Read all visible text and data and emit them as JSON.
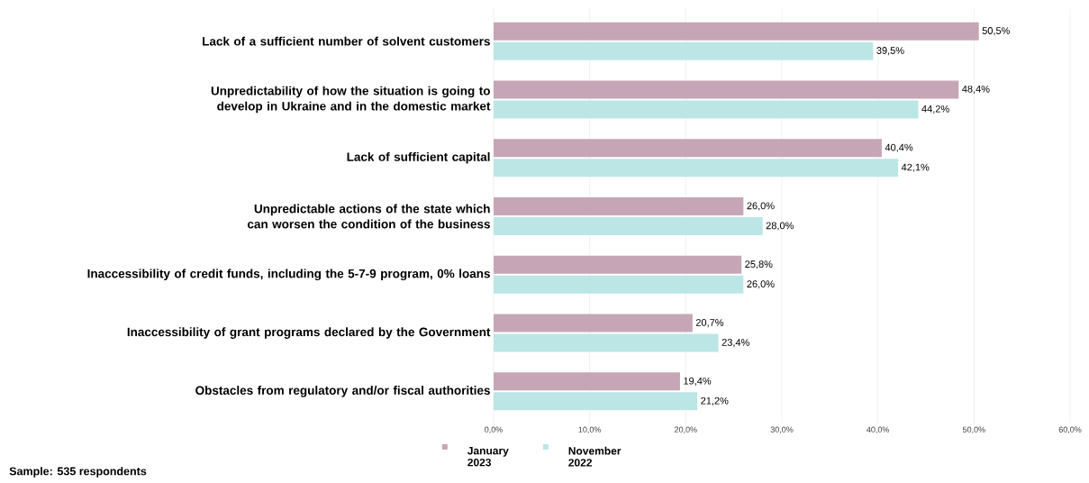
{
  "chart_data": {
    "type": "bar",
    "orientation": "horizontal",
    "categories": [
      "Lack of a sufficient number of solvent customers",
      "Unpredictability of how the situation is going to develop in Ukraine and in the domestic market",
      "Lack of sufficient capital",
      "Unpredictable actions of the state which can worsen the condition of the business",
      "Inaccessibility of credit funds, including the 5-7-9 program, 0% loans",
      "Inaccessibility of grant programs declared by the Government",
      "Obstacles from regulatory and/or fiscal authorities"
    ],
    "series": [
      {
        "name": "January 2023",
        "color": "#c6a6b6",
        "values": [
          50.5,
          48.4,
          40.4,
          26.0,
          25.8,
          20.7,
          19.4
        ],
        "value_labels": [
          "50,5%",
          "48,4%",
          "40,4%",
          "26,0%",
          "25,8%",
          "20,7%",
          "19,4%"
        ]
      },
      {
        "name": "November 2022",
        "color": "#bce6e6",
        "values": [
          39.5,
          44.2,
          42.1,
          28.0,
          26.0,
          23.4,
          21.2
        ],
        "value_labels": [
          "39,5%",
          "44,2%",
          "42,1%",
          "28,0%",
          "26,0%",
          "23,4%",
          "21,2%"
        ]
      }
    ],
    "xlim": [
      0,
      60
    ],
    "xticks": [
      {
        "value": 0,
        "label": "0,0%"
      },
      {
        "value": 10,
        "label": "10,0%"
      },
      {
        "value": 20,
        "label": "20,0%"
      },
      {
        "value": 30,
        "label": "30,0%"
      },
      {
        "value": 40,
        "label": "40,0%"
      },
      {
        "value": 50,
        "label": "50,0%"
      },
      {
        "value": 60,
        "label": "60,0%"
      }
    ],
    "grid": "x",
    "legend": "bottom",
    "annotations": [
      "Sample: 535 respondents"
    ]
  }
}
